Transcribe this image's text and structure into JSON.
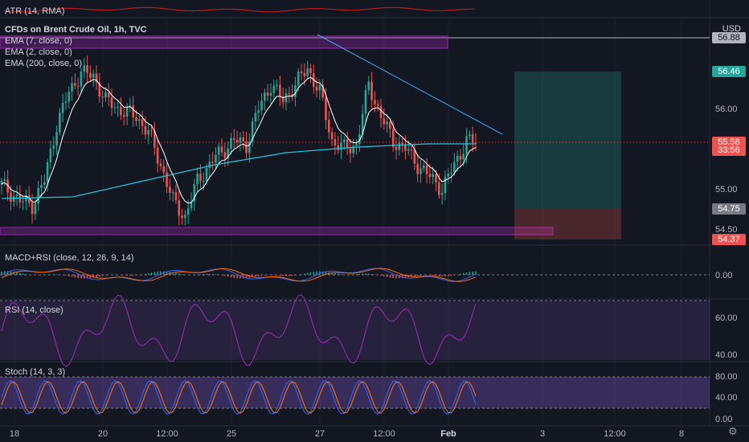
{
  "chart_data": {
    "type": "candlestick",
    "symbol": "CFDs on Brent Crude Oil, 1h, TVC",
    "currency_label": "USD",
    "price_axis": {
      "ylim": [
        54.3,
        57.05
      ],
      "ticks": [
        "56.00",
        "55.00",
        "54.50"
      ]
    },
    "time_axis": {
      "ticks": [
        "18",
        "20",
        "12:00",
        "25",
        "27",
        "12:00",
        "Feb",
        "3",
        "12:00",
        "8"
      ]
    },
    "legends": [
      "EMA (7, close, 0)",
      "EMA (2, close, 0)",
      "EMA (200, close, 0)"
    ],
    "price_tags": [
      {
        "label": "56.88",
        "value": 56.88,
        "bg": "#b2b5be",
        "fg": "#131722"
      },
      {
        "label": "56.46",
        "value": 56.46,
        "bg": "#26a69a",
        "fg": "#ffffff"
      },
      {
        "label": "55.58",
        "value": 55.58,
        "bg": "#ef5350",
        "fg": "#ffffff"
      },
      {
        "label": "33:56",
        "value": 55.485,
        "bg": "#ef5350",
        "fg": "#ffffff"
      },
      {
        "label": "54.75",
        "value": 54.75,
        "bg": "#787b86",
        "fg": "#ffffff"
      },
      {
        "label": "54.37",
        "value": 54.37,
        "bg": "#ef5350",
        "fg": "#ffffff"
      }
    ],
    "ema200": [
      [
        0,
        54.88
      ],
      [
        0.15,
        54.9
      ],
      [
        0.3,
        55.1
      ],
      [
        0.45,
        55.3
      ],
      [
        0.6,
        55.45
      ],
      [
        0.75,
        55.52
      ],
      [
        0.9,
        55.56
      ],
      [
        1.0,
        55.56
      ]
    ],
    "resistance_zone": {
      "y_top": 56.9,
      "y_bottom": 56.75
    },
    "support_zone": {
      "y_top": 54.52,
      "y_bottom": 54.43
    },
    "trendline": [
      [
        0.67,
        56.92
      ],
      [
        1.0,
        55.68
      ]
    ],
    "position": {
      "entry": 54.75,
      "target": 56.46,
      "stop": 54.37
    },
    "last_price": 55.58,
    "atr": {
      "label": "ATR (14, RMA)"
    },
    "macd": {
      "label": "MACD+RSI (close, 12, 26, 9, 14)",
      "ticks": [
        "0.00"
      ]
    },
    "rsi": {
      "label": "RSI (14, close)",
      "ticks": [
        "60.00",
        "40.00"
      ]
    },
    "stoch": {
      "label": "Stoch (14, 3, 3)",
      "ticks": [
        "80.00",
        "40.00",
        "0.00"
      ]
    }
  }
}
